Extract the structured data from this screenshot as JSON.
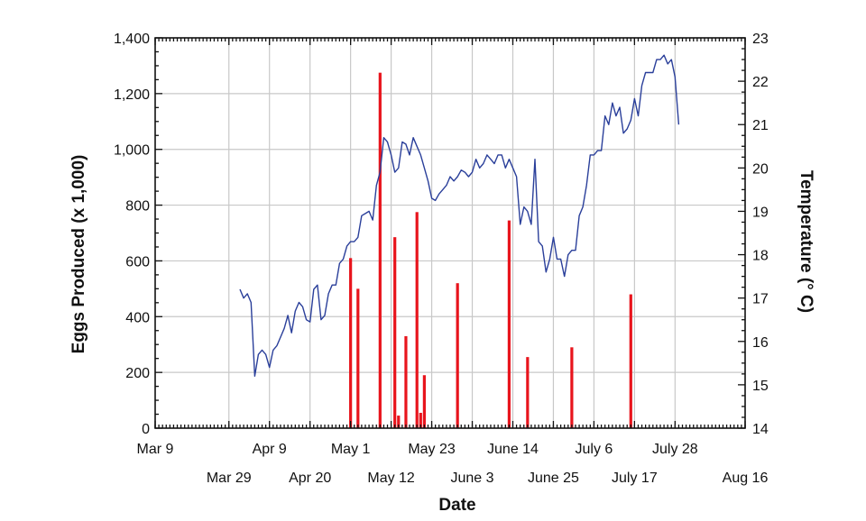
{
  "chart_data": {
    "type": "bar+line",
    "x_axis": {
      "label": "Date",
      "range": [
        "2013-03-09",
        "2013-08-16"
      ],
      "tick_labels_row1": [
        {
          "date": "2013-03-09",
          "label": "Mar 9"
        },
        {
          "date": "2013-04-09",
          "label": "Apr 9"
        },
        {
          "date": "2013-05-01",
          "label": "May 1"
        },
        {
          "date": "2013-05-23",
          "label": "May 23"
        },
        {
          "date": "2013-06-14",
          "label": "June 14"
        },
        {
          "date": "2013-07-06",
          "label": "July 6"
        },
        {
          "date": "2013-07-28",
          "label": "July 28"
        }
      ],
      "tick_labels_row2": [
        {
          "date": "2013-03-29",
          "label": "Mar 29"
        },
        {
          "date": "2013-04-20",
          "label": "Apr 20"
        },
        {
          "date": "2013-05-12",
          "label": "May 12"
        },
        {
          "date": "2013-06-03",
          "label": "June 3"
        },
        {
          "date": "2013-06-25",
          "label": "June 25"
        },
        {
          "date": "2013-07-17",
          "label": "July 17"
        },
        {
          "date": "2013-08-16",
          "label": "Aug 16"
        }
      ]
    },
    "y_left": {
      "label": "Eggs Produced (x 1,000)",
      "range": [
        0,
        1400
      ],
      "ticks": [
        0,
        200,
        400,
        600,
        800,
        1000,
        1200,
        1400
      ],
      "tick_labels": [
        "0",
        "200",
        "400",
        "600",
        "800",
        "1,000",
        "1,200",
        "1,400"
      ]
    },
    "y_right": {
      "label": "Temperature (° C)",
      "range": [
        14,
        23
      ],
      "ticks": [
        14,
        15,
        16,
        17,
        18,
        19,
        20,
        21,
        22,
        23
      ],
      "tick_labels": [
        "14",
        "15",
        "16",
        "17",
        "18",
        "19",
        "20",
        "21",
        "22",
        "23"
      ]
    },
    "grid": true,
    "series": [
      {
        "type": "bar",
        "axis": "left",
        "color": "#e8141c",
        "points": [
          {
            "x": "2013-05-01",
            "y": 610
          },
          {
            "x": "2013-05-03",
            "y": 500
          },
          {
            "x": "2013-05-09",
            "y": 1275
          },
          {
            "x": "2013-05-13",
            "y": 685
          },
          {
            "x": "2013-05-14",
            "y": 45
          },
          {
            "x": "2013-05-16",
            "y": 330
          },
          {
            "x": "2013-05-19",
            "y": 775
          },
          {
            "x": "2013-05-20",
            "y": 55
          },
          {
            "x": "2013-05-21",
            "y": 190
          },
          {
            "x": "2013-05-30",
            "y": 520
          },
          {
            "x": "2013-06-13",
            "y": 745
          },
          {
            "x": "2013-06-18",
            "y": 255
          },
          {
            "x": "2013-06-30",
            "y": 290
          },
          {
            "x": "2013-07-16",
            "y": 480
          }
        ]
      },
      {
        "type": "line",
        "axis": "right",
        "color": "#2a3f9a",
        "points": [
          {
            "x": "2013-04-01",
            "y": 17.2
          },
          {
            "x": "2013-04-02",
            "y": 17.0
          },
          {
            "x": "2013-04-03",
            "y": 17.1
          },
          {
            "x": "2013-04-04",
            "y": 16.9
          },
          {
            "x": "2013-04-05",
            "y": 15.2
          },
          {
            "x": "2013-04-06",
            "y": 15.7
          },
          {
            "x": "2013-04-07",
            "y": 15.8
          },
          {
            "x": "2013-04-08",
            "y": 15.7
          },
          {
            "x": "2013-04-09",
            "y": 15.4
          },
          {
            "x": "2013-04-10",
            "y": 15.8
          },
          {
            "x": "2013-04-11",
            "y": 15.9
          },
          {
            "x": "2013-04-12",
            "y": 16.1
          },
          {
            "x": "2013-04-13",
            "y": 16.3
          },
          {
            "x": "2013-04-14",
            "y": 16.6
          },
          {
            "x": "2013-04-15",
            "y": 16.2
          },
          {
            "x": "2013-04-16",
            "y": 16.7
          },
          {
            "x": "2013-04-17",
            "y": 16.9
          },
          {
            "x": "2013-04-18",
            "y": 16.8
          },
          {
            "x": "2013-04-19",
            "y": 16.5
          },
          {
            "x": "2013-04-20",
            "y": 16.45
          },
          {
            "x": "2013-04-21",
            "y": 17.2
          },
          {
            "x": "2013-04-22",
            "y": 17.3
          },
          {
            "x": "2013-04-23",
            "y": 16.5
          },
          {
            "x": "2013-04-24",
            "y": 16.6
          },
          {
            "x": "2013-04-25",
            "y": 17.1
          },
          {
            "x": "2013-04-26",
            "y": 17.3
          },
          {
            "x": "2013-04-27",
            "y": 17.3
          },
          {
            "x": "2013-04-28",
            "y": 17.8
          },
          {
            "x": "2013-04-29",
            "y": 17.9
          },
          {
            "x": "2013-04-30",
            "y": 18.2
          },
          {
            "x": "2013-05-01",
            "y": 18.3
          },
          {
            "x": "2013-05-02",
            "y": 18.3
          },
          {
            "x": "2013-05-03",
            "y": 18.4
          },
          {
            "x": "2013-05-04",
            "y": 18.9
          },
          {
            "x": "2013-05-05",
            "y": 18.95
          },
          {
            "x": "2013-05-06",
            "y": 19.0
          },
          {
            "x": "2013-05-07",
            "y": 18.8
          },
          {
            "x": "2013-05-08",
            "y": 19.6
          },
          {
            "x": "2013-05-09",
            "y": 19.9
          },
          {
            "x": "2013-05-10",
            "y": 20.7
          },
          {
            "x": "2013-05-11",
            "y": 20.6
          },
          {
            "x": "2013-05-12",
            "y": 20.3
          },
          {
            "x": "2013-05-13",
            "y": 19.9
          },
          {
            "x": "2013-05-14",
            "y": 20.0
          },
          {
            "x": "2013-05-15",
            "y": 20.6
          },
          {
            "x": "2013-05-16",
            "y": 20.55
          },
          {
            "x": "2013-05-17",
            "y": 20.3
          },
          {
            "x": "2013-05-18",
            "y": 20.7
          },
          {
            "x": "2013-05-19",
            "y": 20.5
          },
          {
            "x": "2013-05-20",
            "y": 20.3
          },
          {
            "x": "2013-05-21",
            "y": 20.0
          },
          {
            "x": "2013-05-22",
            "y": 19.7
          },
          {
            "x": "2013-05-23",
            "y": 19.3
          },
          {
            "x": "2013-05-24",
            "y": 19.25
          },
          {
            "x": "2013-05-25",
            "y": 19.4
          },
          {
            "x": "2013-05-26",
            "y": 19.5
          },
          {
            "x": "2013-05-27",
            "y": 19.6
          },
          {
            "x": "2013-05-28",
            "y": 19.8
          },
          {
            "x": "2013-05-29",
            "y": 19.7
          },
          {
            "x": "2013-05-30",
            "y": 19.8
          },
          {
            "x": "2013-05-31",
            "y": 19.95
          },
          {
            "x": "2013-06-01",
            "y": 19.9
          },
          {
            "x": "2013-06-02",
            "y": 19.8
          },
          {
            "x": "2013-06-03",
            "y": 19.9
          },
          {
            "x": "2013-06-04",
            "y": 20.2
          },
          {
            "x": "2013-06-05",
            "y": 20.0
          },
          {
            "x": "2013-06-06",
            "y": 20.1
          },
          {
            "x": "2013-06-07",
            "y": 20.3
          },
          {
            "x": "2013-06-08",
            "y": 20.2
          },
          {
            "x": "2013-06-09",
            "y": 20.1
          },
          {
            "x": "2013-06-10",
            "y": 20.3
          },
          {
            "x": "2013-06-11",
            "y": 20.3
          },
          {
            "x": "2013-06-12",
            "y": 20.0
          },
          {
            "x": "2013-06-13",
            "y": 20.2
          },
          {
            "x": "2013-06-14",
            "y": 20.0
          },
          {
            "x": "2013-06-15",
            "y": 19.8
          },
          {
            "x": "2013-06-16",
            "y": 18.7
          },
          {
            "x": "2013-06-17",
            "y": 19.1
          },
          {
            "x": "2013-06-18",
            "y": 19.0
          },
          {
            "x": "2013-06-19",
            "y": 18.7
          },
          {
            "x": "2013-06-20",
            "y": 20.2
          },
          {
            "x": "2013-06-21",
            "y": 18.3
          },
          {
            "x": "2013-06-22",
            "y": 18.2
          },
          {
            "x": "2013-06-23",
            "y": 17.6
          },
          {
            "x": "2013-06-24",
            "y": 17.9
          },
          {
            "x": "2013-06-25",
            "y": 18.4
          },
          {
            "x": "2013-06-26",
            "y": 17.9
          },
          {
            "x": "2013-06-27",
            "y": 17.9
          },
          {
            "x": "2013-06-28",
            "y": 17.5
          },
          {
            "x": "2013-06-29",
            "y": 18.0
          },
          {
            "x": "2013-06-30",
            "y": 18.1
          },
          {
            "x": "2013-07-01",
            "y": 18.1
          },
          {
            "x": "2013-07-02",
            "y": 18.9
          },
          {
            "x": "2013-07-03",
            "y": 19.1
          },
          {
            "x": "2013-07-04",
            "y": 19.6
          },
          {
            "x": "2013-07-05",
            "y": 20.3
          },
          {
            "x": "2013-07-06",
            "y": 20.3
          },
          {
            "x": "2013-07-07",
            "y": 20.4
          },
          {
            "x": "2013-07-08",
            "y": 20.4
          },
          {
            "x": "2013-07-09",
            "y": 21.2
          },
          {
            "x": "2013-07-10",
            "y": 21.0
          },
          {
            "x": "2013-07-11",
            "y": 21.5
          },
          {
            "x": "2013-07-12",
            "y": 21.2
          },
          {
            "x": "2013-07-13",
            "y": 21.4
          },
          {
            "x": "2013-07-14",
            "y": 20.8
          },
          {
            "x": "2013-07-15",
            "y": 20.9
          },
          {
            "x": "2013-07-16",
            "y": 21.1
          },
          {
            "x": "2013-07-17",
            "y": 21.6
          },
          {
            "x": "2013-07-18",
            "y": 21.2
          },
          {
            "x": "2013-07-19",
            "y": 21.9
          },
          {
            "x": "2013-07-20",
            "y": 22.2
          },
          {
            "x": "2013-07-21",
            "y": 22.2
          },
          {
            "x": "2013-07-22",
            "y": 22.2
          },
          {
            "x": "2013-07-23",
            "y": 22.5
          },
          {
            "x": "2013-07-24",
            "y": 22.5
          },
          {
            "x": "2013-07-25",
            "y": 22.6
          },
          {
            "x": "2013-07-26",
            "y": 22.4
          },
          {
            "x": "2013-07-27",
            "y": 22.5
          },
          {
            "x": "2013-07-28",
            "y": 22.1
          },
          {
            "x": "2013-07-29",
            "y": 21.0
          }
        ]
      }
    ]
  }
}
